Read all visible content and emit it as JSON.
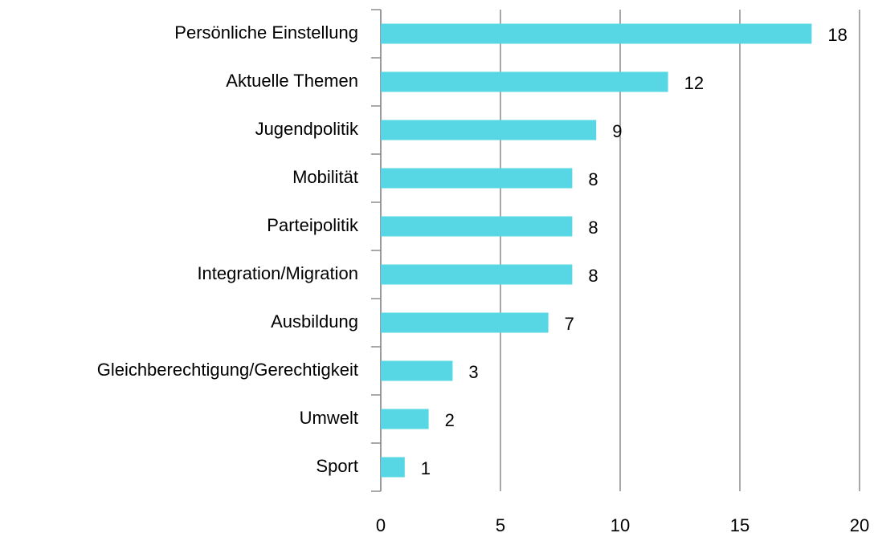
{
  "chart_data": {
    "type": "bar",
    "orientation": "horizontal",
    "categories": [
      "Persönliche Einstellung",
      "Aktuelle Themen",
      "Jugendpolitik",
      "Mobilität",
      "Parteipolitik",
      "Integration/Migration",
      "Ausbildung",
      "Gleichberechtigung/Gerechtigkeit",
      "Umwelt",
      "Sport"
    ],
    "values": [
      18,
      12,
      9,
      8,
      8,
      8,
      7,
      3,
      2,
      1
    ],
    "color": "#57d7e3",
    "xlim": [
      0,
      20
    ],
    "xticks": [
      0,
      5,
      10,
      15,
      20
    ],
    "grid": true
  }
}
